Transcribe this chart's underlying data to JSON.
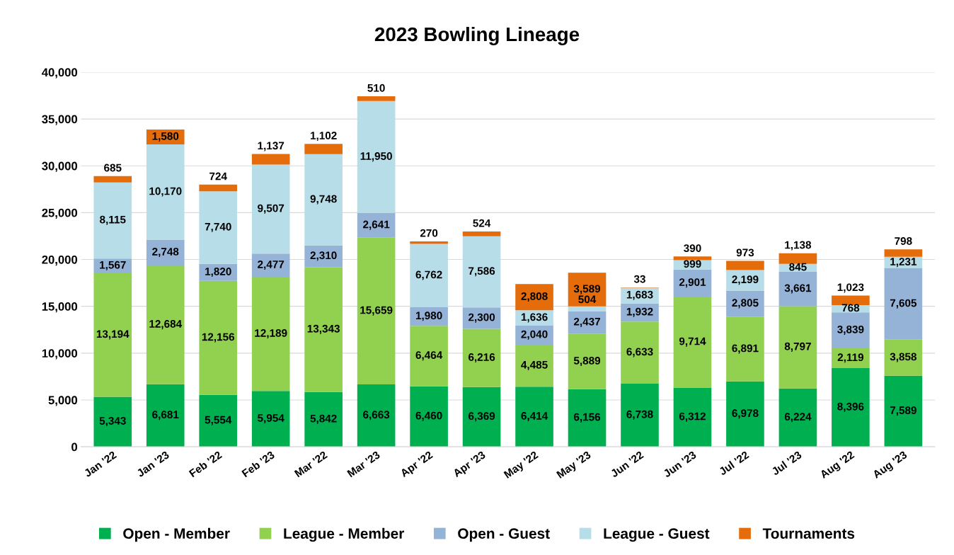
{
  "chart_data": {
    "type": "bar",
    "title": "2023 Bowling Lineage",
    "stacked": true,
    "categories": [
      "Jan '22",
      "Jan '23",
      "Feb '22",
      "Feb '23",
      "Mar '22",
      "Mar '23",
      "Apr '22",
      "Apr '23",
      "May '22",
      "May '23",
      "Jun '22",
      "Jun '23",
      "Jul '22",
      "Jul '23",
      "Aug '22",
      "Aug '23"
    ],
    "series": [
      {
        "name": "Open - Member",
        "color": "#00b050",
        "values": [
          5343,
          6681,
          5554,
          5954,
          5842,
          6663,
          6460,
          6369,
          6414,
          6156,
          6738,
          6312,
          6978,
          6224,
          8396,
          7589
        ],
        "value_labels": [
          "5,343",
          "6,681",
          "5,554",
          "5,954",
          "5,842",
          "6,663",
          "6,460",
          "6,369",
          "6,414",
          "6,156",
          "6,738",
          "6,312",
          "6,978",
          "6,224",
          "8,396",
          "7,589"
        ]
      },
      {
        "name": "League - Member",
        "color": "#92d050",
        "values": [
          13194,
          12684,
          12156,
          12189,
          13343,
          15659,
          6464,
          6216,
          4485,
          5889,
          6633,
          9714,
          6891,
          8797,
          2119,
          3858
        ],
        "value_labels": [
          "13,194",
          "12,684",
          "12,156",
          "12,189",
          "13,343",
          "15,659",
          "6,464",
          "6,216",
          "4,485",
          "5,889",
          "6,633",
          "9,714",
          "6,891",
          "8,797",
          "2,119",
          "3,858"
        ]
      },
      {
        "name": "Open - Guest",
        "color": "#95b3d7",
        "values": [
          1567,
          2748,
          1820,
          2477,
          2310,
          2641,
          1980,
          2300,
          2040,
          2437,
          1932,
          2901,
          2805,
          3661,
          3839,
          7605
        ],
        "value_labels": [
          "1,567",
          "2,748",
          "1,820",
          "2,477",
          "2,310",
          "2,641",
          "1,980",
          "2,300",
          "2,040",
          "2,437",
          "1,932",
          "2,901",
          "2,805",
          "3,661",
          "3,839",
          "7,605"
        ]
      },
      {
        "name": "League - Guest",
        "color": "#b7dee8",
        "values": [
          8115,
          10170,
          7740,
          9507,
          9748,
          11950,
          6762,
          7586,
          1636,
          504,
          1683,
          999,
          2199,
          845,
          768,
          1231
        ],
        "value_labels": [
          "8,115",
          "10,170",
          "7,740",
          "9,507",
          "9,748",
          "11,950",
          "6,762",
          "7,586",
          "1,636",
          "504",
          "1,683",
          "999",
          "2,199",
          "845",
          "768",
          "1,231"
        ]
      },
      {
        "name": "Tournaments",
        "color": "#e46c0a",
        "values": [
          685,
          1580,
          724,
          1137,
          1102,
          510,
          270,
          524,
          2808,
          3589,
          33,
          390,
          973,
          1138,
          1023,
          798
        ],
        "value_labels": [
          "685",
          "1,580",
          "724",
          "1,137",
          "1,102",
          "510",
          "270",
          "524",
          "2,808",
          "3,589",
          "33",
          "390",
          "973",
          "1,138",
          "1,023",
          "798"
        ]
      }
    ],
    "ylim": [
      0,
      40000
    ],
    "yticks": [
      {
        "value": 0,
        "label": "0"
      },
      {
        "value": 5000,
        "label": "5,000"
      },
      {
        "value": 10000,
        "label": "10,000"
      },
      {
        "value": 15000,
        "label": "15,000"
      },
      {
        "value": 20000,
        "label": "20,000"
      },
      {
        "value": 25000,
        "label": "25,000"
      },
      {
        "value": 30000,
        "label": "30,000"
      },
      {
        "value": 35000,
        "label": "35,000"
      },
      {
        "value": 40000,
        "label": "40,000"
      }
    ],
    "grid": "y",
    "legend": "bottom"
  }
}
